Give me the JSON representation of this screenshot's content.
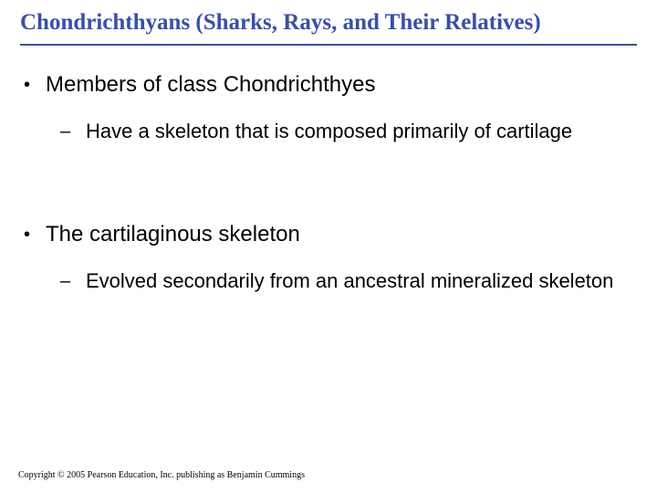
{
  "title": "Chondrichthyans (Sharks, Rays, and Their Relatives)",
  "title_color": "#3a4fa5",
  "title_fontsize": 25,
  "rule_color": "#3a4fa5",
  "body_color": "#000000",
  "background_color": "#ffffff",
  "bullets": {
    "b1": {
      "marker": "•",
      "text": "Members of class Chondrichthyes",
      "fontsize": 24
    },
    "b1a": {
      "marker": "–",
      "text": "Have a skeleton that is composed primarily of cartilage",
      "fontsize": 22
    },
    "b2": {
      "marker": "•",
      "text": "The cartilaginous skeleton",
      "fontsize": 24
    },
    "b2a": {
      "marker": "–",
      "text": "Evolved secondarily from an ancestral mineralized skeleton",
      "fontsize": 22
    }
  },
  "footer": "Copyright © 2005 Pearson Education, Inc. publishing as Benjamin Cummings",
  "footer_fontsize": 10
}
